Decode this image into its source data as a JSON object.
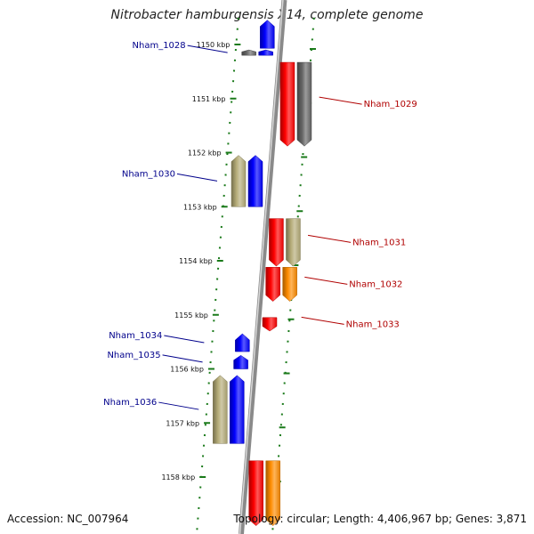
{
  "title": "Nitrobacter hamburgensis X14, complete genome",
  "footer": {
    "accession": "Accession: NC_007964",
    "summary": "Topology: circular; Length: 4,406,967 bp; Genes: 3,871"
  },
  "colors": {
    "forward_gene": "#0000ff",
    "reverse_gene": "#ff0000",
    "gray_gene": "#666666",
    "tan_gene": "#b5ac78",
    "orange_gene": "#ff8c00",
    "ticks": "#1a7a1a",
    "forward_label": "#00008b",
    "reverse_label": "#b00000"
  },
  "ticks": [
    {
      "kbp": 1150,
      "label": "1150 kbp"
    },
    {
      "kbp": 1151,
      "label": "1151 kbp"
    },
    {
      "kbp": 1152,
      "label": "1152 kbp"
    },
    {
      "kbp": 1153,
      "label": "1153 kbp"
    },
    {
      "kbp": 1154,
      "label": "1154 kbp"
    },
    {
      "kbp": 1155,
      "label": "1155 kbp"
    },
    {
      "kbp": 1156,
      "label": "1156 kbp"
    },
    {
      "kbp": 1157,
      "label": "1157 kbp"
    },
    {
      "kbp": 1158,
      "label": "1158 kbp"
    }
  ],
  "genes": [
    {
      "id": "g0",
      "start": 1149.55,
      "end": 1150.07,
      "strand": "+",
      "lane": 1,
      "color": "forward_gene",
      "label": ""
    },
    {
      "id": "g1",
      "start": 1150.1,
      "end": 1150.2,
      "strand": "+",
      "lane": 1,
      "color": "forward_gene",
      "label": ""
    },
    {
      "id": "g2",
      "start": 1150.1,
      "end": 1150.2,
      "strand": "+",
      "lane": 2,
      "color": "gray_gene",
      "label": "Nham_1028"
    },
    {
      "id": "g3",
      "start": 1150.33,
      "end": 1151.88,
      "strand": "-",
      "lane": 1,
      "color": "reverse_gene",
      "label": "Nham_1029"
    },
    {
      "id": "g4",
      "start": 1150.33,
      "end": 1151.88,
      "strand": "-",
      "lane": 2,
      "color": "gray_gene",
      "label": ""
    },
    {
      "id": "g5",
      "start": 1152.05,
      "end": 1153.0,
      "strand": "+",
      "lane": 1,
      "color": "forward_gene",
      "label": ""
    },
    {
      "id": "g6",
      "start": 1152.05,
      "end": 1153.0,
      "strand": "+",
      "lane": 2,
      "color": "tan_gene",
      "label": "Nham_1030"
    },
    {
      "id": "g7",
      "start": 1153.22,
      "end": 1154.1,
      "strand": "-",
      "lane": 1,
      "color": "reverse_gene",
      "label": "Nham_1031"
    },
    {
      "id": "g8",
      "start": 1153.22,
      "end": 1154.1,
      "strand": "-",
      "lane": 2,
      "color": "tan_gene",
      "label": ""
    },
    {
      "id": "g9",
      "start": 1154.12,
      "end": 1154.75,
      "strand": "-",
      "lane": 1,
      "color": "reverse_gene",
      "label": "Nham_1032"
    },
    {
      "id": "g10",
      "start": 1154.12,
      "end": 1154.75,
      "strand": "-",
      "lane": 2,
      "color": "orange_gene",
      "label": ""
    },
    {
      "id": "g11",
      "start": 1155.05,
      "end": 1155.3,
      "strand": "-",
      "lane": 1,
      "color": "reverse_gene",
      "label": "Nham_1033"
    },
    {
      "id": "g12",
      "start": 1155.35,
      "end": 1155.68,
      "strand": "+",
      "lane": 1,
      "color": "forward_gene",
      "label": "Nham_1034"
    },
    {
      "id": "g13",
      "start": 1155.75,
      "end": 1156.0,
      "strand": "+",
      "lane": 1,
      "color": "forward_gene",
      "label": "Nham_1035"
    },
    {
      "id": "g14",
      "start": 1156.12,
      "end": 1157.38,
      "strand": "+",
      "lane": 1,
      "color": "forward_gene",
      "label": "Nham_1036"
    },
    {
      "id": "g15",
      "start": 1156.12,
      "end": 1157.38,
      "strand": "+",
      "lane": 2,
      "color": "tan_gene",
      "label": ""
    },
    {
      "id": "g16",
      "start": 1157.7,
      "end": 1158.9,
      "strand": "-",
      "lane": 1,
      "color": "reverse_gene",
      "label": ""
    },
    {
      "id": "g17",
      "start": 1157.7,
      "end": 1158.9,
      "strand": "-",
      "lane": 2,
      "color": "orange_gene",
      "label": ""
    }
  ]
}
